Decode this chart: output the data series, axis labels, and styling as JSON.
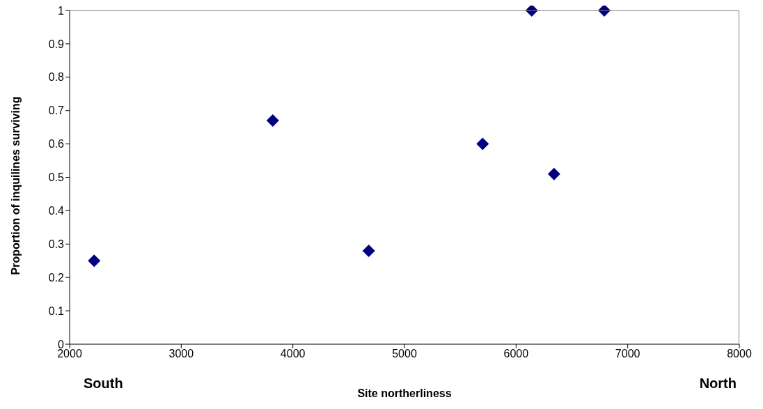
{
  "chart_data": {
    "type": "scatter",
    "xlabel": "Site northerliness",
    "ylabel": "Proportion of inquilines surviving",
    "x": [
      2220,
      3820,
      4680,
      5700,
      6140,
      6340,
      6790
    ],
    "values": [
      0.25,
      0.67,
      0.28,
      0.6,
      1,
      0.51,
      1
    ],
    "color": "#000080",
    "marker": "diamond",
    "xlim": [
      2000,
      8000
    ],
    "xticks": [
      2000,
      3000,
      4000,
      5000,
      6000,
      7000,
      8000
    ],
    "ylim": [
      0,
      1
    ],
    "yticks": [
      0,
      0.1,
      0.2,
      0.3,
      0.4,
      0.5,
      0.6,
      0.7,
      0.8,
      0.9,
      1
    ],
    "annotations": [
      "South",
      "North"
    ]
  }
}
